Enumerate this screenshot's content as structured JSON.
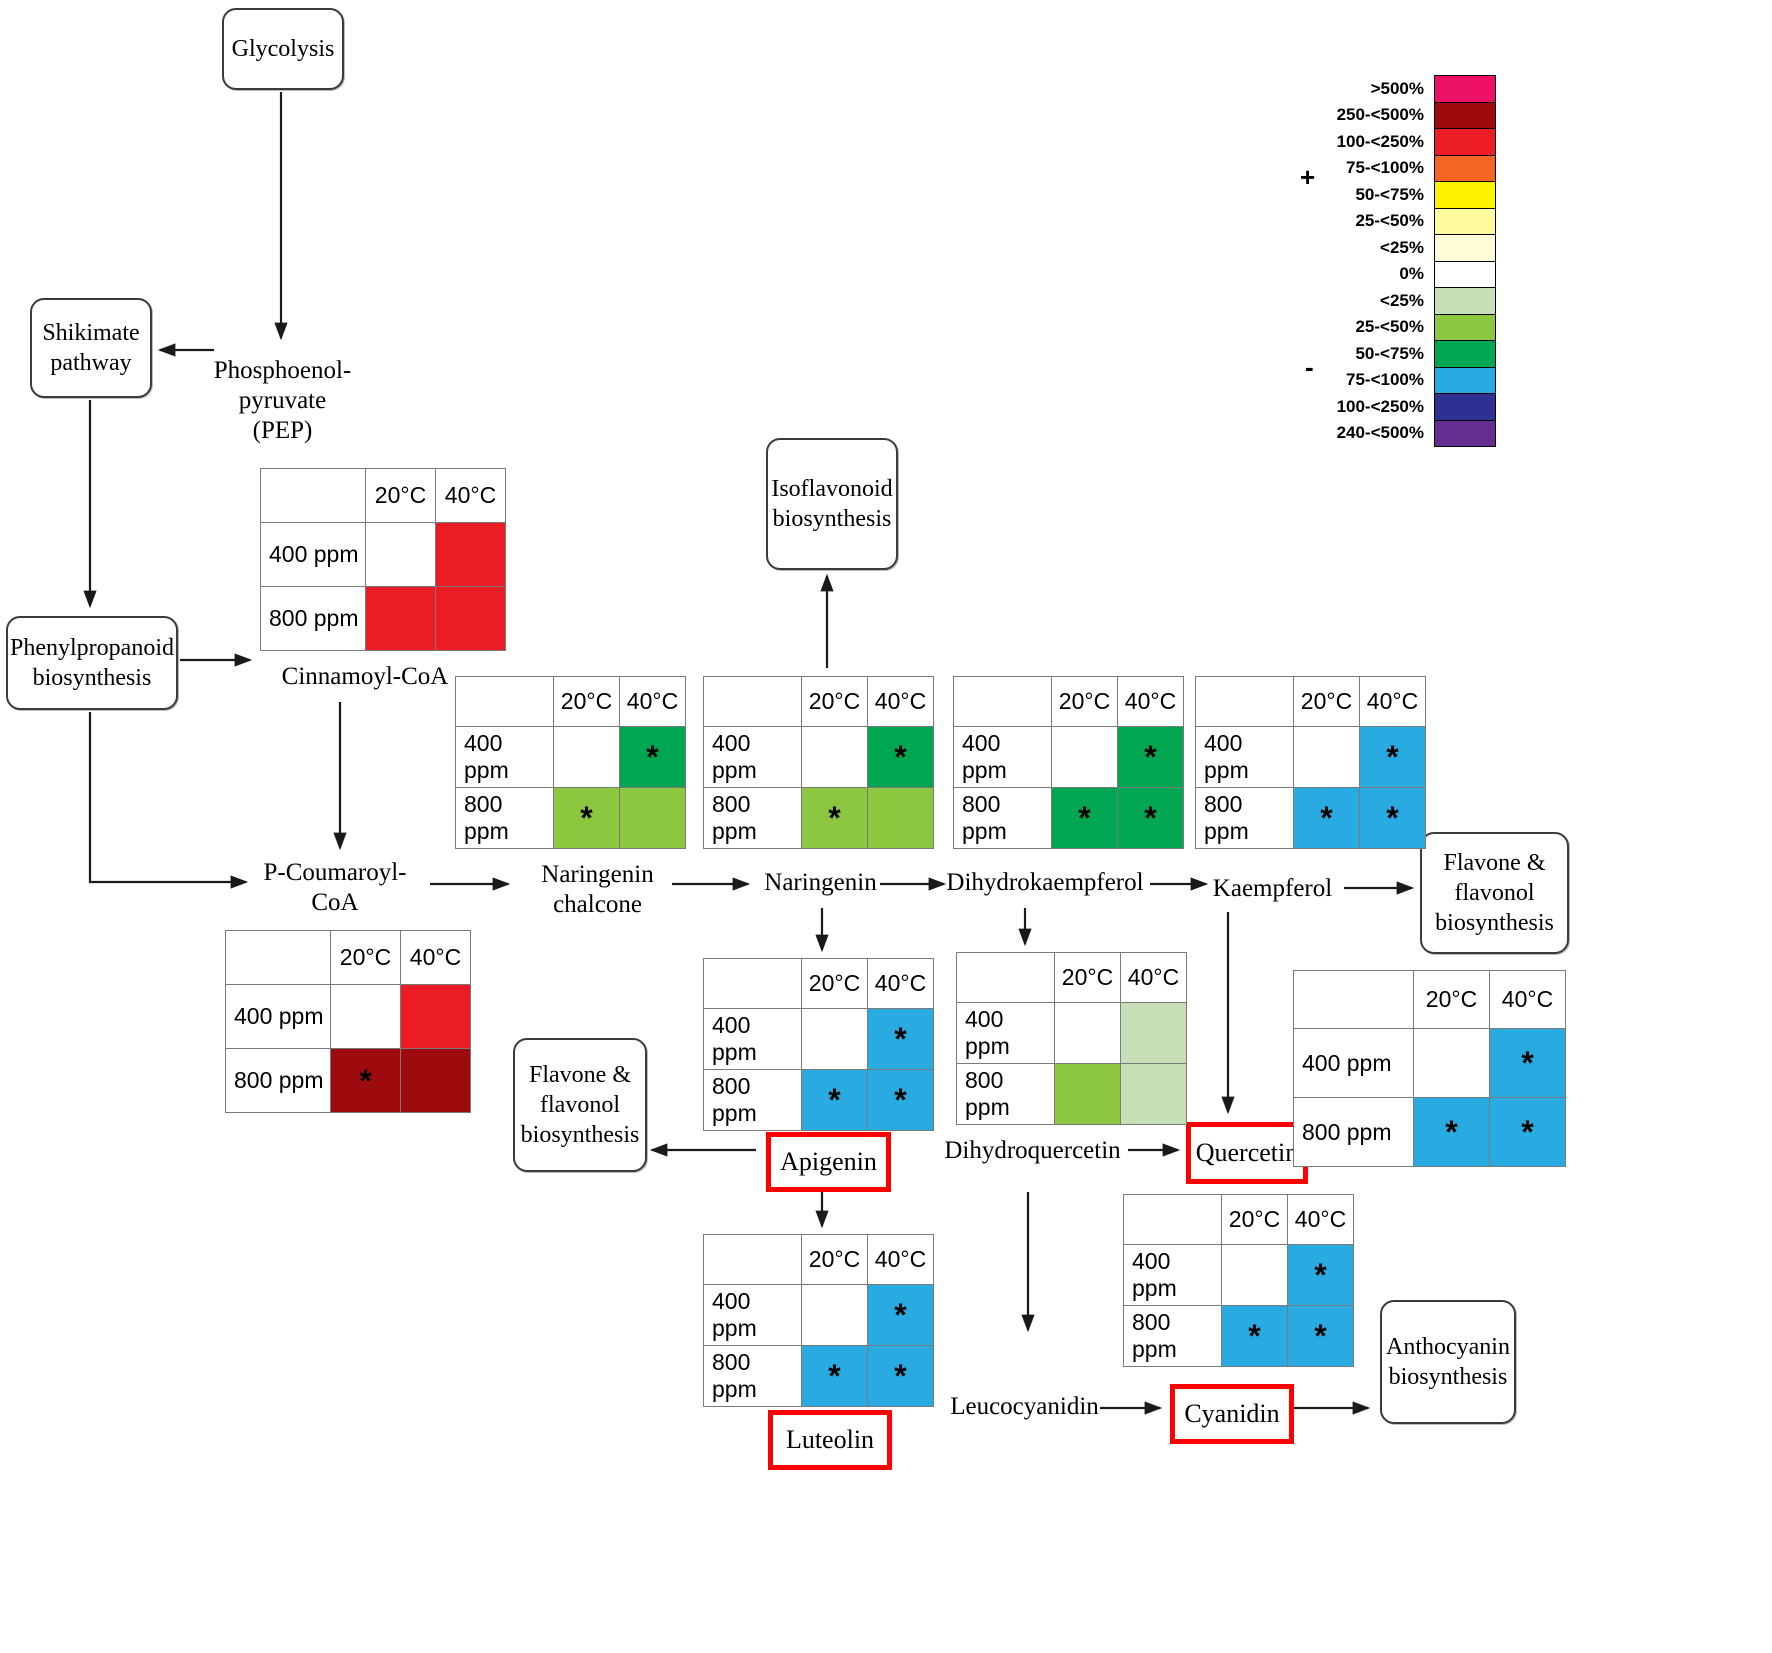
{
  "colors": {
    "white": "#FFFFFF",
    "pink": "#EC1164",
    "dark_red": "#9E0B0F",
    "red": "#EC1C24",
    "orange": "#F26522",
    "yellow": "#FFF200",
    "light_yellow": "#FFFA9C",
    "pale_yellow": "#FFFDD9",
    "pale_green": "#C6DFB6",
    "light_green": "#8DC63F",
    "dark_green": "#00A651",
    "blue": "#29ABE2",
    "dark_blue": "#2E3192",
    "purple": "#662D91",
    "red_outline": "#FE0000"
  },
  "legend": {
    "plus": "+",
    "minus": "-",
    "entries": [
      {
        "label": ">500%",
        "color": "pink"
      },
      {
        "label": "250-<500%",
        "color": "dark_red"
      },
      {
        "label": "100-<250%",
        "color": "red"
      },
      {
        "label": "75-<100%",
        "color": "orange"
      },
      {
        "label": "50-<75%",
        "color": "yellow"
      },
      {
        "label": "25-<50%",
        "color": "light_yellow"
      },
      {
        "label": "<25%",
        "color": "pale_yellow"
      },
      {
        "label": "0%",
        "color": "white"
      },
      {
        "label": "<25%",
        "color": "pale_green"
      },
      {
        "label": "25-<50%",
        "color": "light_green"
      },
      {
        "label": "50-<75%",
        "color": "dark_green"
      },
      {
        "label": "75-<100%",
        "color": "blue"
      },
      {
        "label": "100-<250%",
        "color": "dark_blue"
      },
      {
        "label": "240-<500%",
        "color": "purple"
      }
    ]
  },
  "boxes": {
    "glycolysis": "Glycolysis",
    "shikimate": "Shikimate\npathway",
    "phenylpropanoid": "Phenylpropanoid\nbiosynthesis",
    "isoflavonoid": "Isoflavonoid\nbiosynthesis",
    "flavone_right": "Flavone &\nflavonol\nbiosynthesis",
    "flavone_left": "Flavone &\nflavonol\nbiosynthesis",
    "anthocyanin": "Anthocyanin\nbiosynthesis"
  },
  "metabolites": {
    "pep": "Phosphoenol-\npyruvate\n(PEP)",
    "cinnamoyl": "Cinnamoyl-CoA",
    "pcoumaroyl": "P-Coumaroyl-\nCoA",
    "chalcone": "Naringenin\nchalcone",
    "naringenin": "Naringenin",
    "dihydrokaempferol": "Dihydrokaempferol",
    "kaempferol": "Kaempferol",
    "apigenin": "Apigenin",
    "dihydroquercetin": "Dihydroquercetin",
    "quercetin": "Quercetin",
    "luteolin": "Luteolin",
    "leucocyanidin": "Leucocyanidin",
    "cyanidin": "Cyanidin"
  },
  "heatmaps": [
    {
      "id": "cinnamoyl",
      "col_headers": [
        "20°C",
        "40°C"
      ],
      "rows": [
        {
          "label": "400 ppm",
          "cells": [
            {
              "color": "white",
              "star": false
            },
            {
              "color": "red",
              "star": false
            }
          ]
        },
        {
          "label": "800 ppm",
          "cells": [
            {
              "color": "red",
              "star": false
            },
            {
              "color": "red",
              "star": false
            }
          ]
        }
      ]
    },
    {
      "id": "pcoumaroyl",
      "col_headers": [
        "20°C",
        "40°C"
      ],
      "rows": [
        {
          "label": "400 ppm",
          "cells": [
            {
              "color": "white",
              "star": false
            },
            {
              "color": "red",
              "star": false
            }
          ]
        },
        {
          "label": "800 ppm",
          "cells": [
            {
              "color": "dark_red",
              "star": true
            },
            {
              "color": "dark_red",
              "star": false
            }
          ]
        }
      ]
    },
    {
      "id": "chalcone",
      "col_headers": [
        "20°C",
        "40°C"
      ],
      "rows": [
        {
          "label": "400 ppm",
          "cells": [
            {
              "color": "white",
              "star": false
            },
            {
              "color": "dark_green",
              "star": true
            }
          ]
        },
        {
          "label": "800 ppm",
          "cells": [
            {
              "color": "light_green",
              "star": true
            },
            {
              "color": "light_green",
              "star": false
            }
          ]
        }
      ]
    },
    {
      "id": "naringenin",
      "col_headers": [
        "20°C",
        "40°C"
      ],
      "rows": [
        {
          "label": "400 ppm",
          "cells": [
            {
              "color": "white",
              "star": false
            },
            {
              "color": "dark_green",
              "star": true
            }
          ]
        },
        {
          "label": "800 ppm",
          "cells": [
            {
              "color": "light_green",
              "star": true
            },
            {
              "color": "light_green",
              "star": false
            }
          ]
        }
      ]
    },
    {
      "id": "dihydrokaempferol",
      "col_headers": [
        "20°C",
        "40°C"
      ],
      "rows": [
        {
          "label": "400 ppm",
          "cells": [
            {
              "color": "white",
              "star": false
            },
            {
              "color": "dark_green",
              "star": true
            }
          ]
        },
        {
          "label": "800 ppm",
          "cells": [
            {
              "color": "dark_green",
              "star": true
            },
            {
              "color": "dark_green",
              "star": true
            }
          ]
        }
      ]
    },
    {
      "id": "kaempferol",
      "col_headers": [
        "20°C",
        "40°C"
      ],
      "rows": [
        {
          "label": "400 ppm",
          "cells": [
            {
              "color": "white",
              "star": false
            },
            {
              "color": "blue",
              "star": true
            }
          ]
        },
        {
          "label": "800 ppm",
          "cells": [
            {
              "color": "blue",
              "star": true
            },
            {
              "color": "blue",
              "star": true
            }
          ]
        }
      ]
    },
    {
      "id": "apigenin",
      "col_headers": [
        "20°C",
        "40°C"
      ],
      "rows": [
        {
          "label": "400 ppm",
          "cells": [
            {
              "color": "white",
              "star": false
            },
            {
              "color": "blue",
              "star": true
            }
          ]
        },
        {
          "label": "800 ppm",
          "cells": [
            {
              "color": "blue",
              "star": true
            },
            {
              "color": "blue",
              "star": true
            }
          ]
        }
      ]
    },
    {
      "id": "dihydroquercetin",
      "col_headers": [
        "20°C",
        "40°C"
      ],
      "rows": [
        {
          "label": "400 ppm",
          "cells": [
            {
              "color": "white",
              "star": false
            },
            {
              "color": "pale_green",
              "star": false
            }
          ]
        },
        {
          "label": "800 ppm",
          "cells": [
            {
              "color": "light_green",
              "star": false
            },
            {
              "color": "pale_green",
              "star": false
            }
          ]
        }
      ]
    },
    {
      "id": "quercetin",
      "col_headers": [
        "20°C",
        "40°C"
      ],
      "rows": [
        {
          "label": "400 ppm",
          "cells": [
            {
              "color": "white",
              "star": false
            },
            {
              "color": "blue",
              "star": true
            }
          ]
        },
        {
          "label": "800 ppm",
          "cells": [
            {
              "color": "blue",
              "star": true
            },
            {
              "color": "blue",
              "star": true
            }
          ]
        }
      ]
    },
    {
      "id": "luteolin",
      "col_headers": [
        "20°C",
        "40°C"
      ],
      "rows": [
        {
          "label": "400 ppm",
          "cells": [
            {
              "color": "white",
              "star": false
            },
            {
              "color": "blue",
              "star": true
            }
          ]
        },
        {
          "label": "800 ppm",
          "cells": [
            {
              "color": "blue",
              "star": true
            },
            {
              "color": "blue",
              "star": true
            }
          ]
        }
      ]
    },
    {
      "id": "cyanidin",
      "col_headers": [
        "20°C",
        "40°C"
      ],
      "rows": [
        {
          "label": "400 ppm",
          "cells": [
            {
              "color": "white",
              "star": false
            },
            {
              "color": "blue",
              "star": true
            }
          ]
        },
        {
          "label": "800 ppm",
          "cells": [
            {
              "color": "blue",
              "star": true
            },
            {
              "color": "blue",
              "star": true
            }
          ]
        }
      ]
    }
  ]
}
